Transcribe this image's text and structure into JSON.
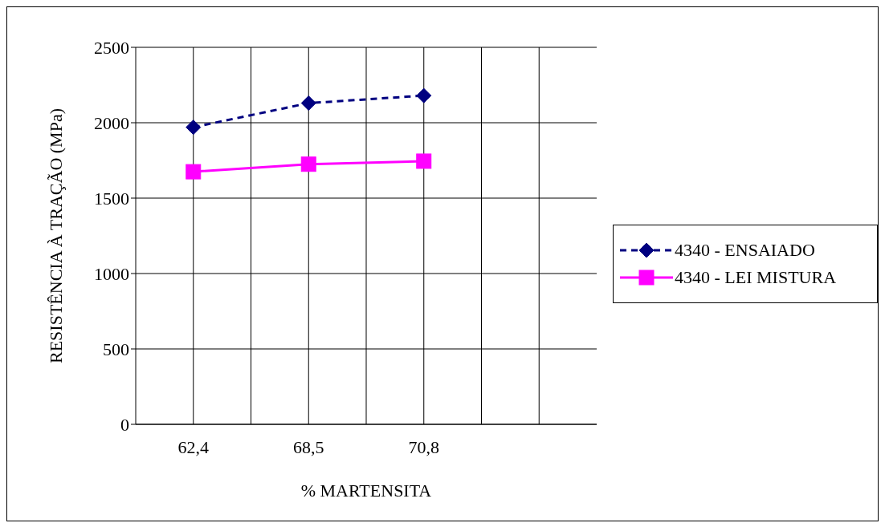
{
  "chart_data": {
    "type": "line",
    "xlabel": "% MARTENSITA",
    "ylabel": "RESISTÊNCIA À TRAÇÃO (MPa)",
    "categories": [
      "62,4",
      "68,5",
      "70,8",
      null
    ],
    "series": [
      {
        "name": "4340 - ENSAIADO",
        "color": "#000080",
        "values": [
          1970,
          2130,
          2180,
          null
        ],
        "marker": "diamond",
        "line_style": "dashed"
      },
      {
        "name": "4340 - LEI MISTURA",
        "color": "#ff00ff",
        "values": [
          1675,
          1725,
          1745,
          null
        ],
        "marker": "square",
        "line_style": "solid"
      }
    ],
    "ylim": [
      0,
      2500
    ],
    "yticks": [
      0,
      500,
      1000,
      1500,
      2000,
      2500
    ],
    "grid": true,
    "legend": "right"
  }
}
